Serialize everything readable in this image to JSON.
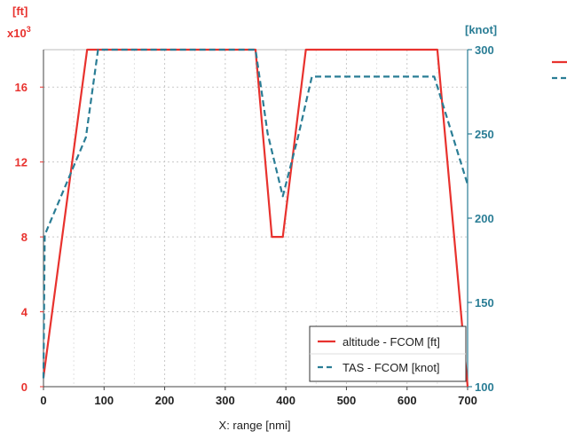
{
  "colors": {
    "altitude": "#e8322e",
    "tas": "#2a7d95",
    "grid": "#c8c8c8",
    "axis": "#444444"
  },
  "chart_data": {
    "type": "line",
    "xlabel": "X: range [nmi]",
    "xlim": [
      0,
      700
    ],
    "x_ticks": [
      0,
      100,
      200,
      300,
      400,
      500,
      600,
      700
    ],
    "left_axis": {
      "unit_label": "[ft]",
      "multiplier_base": "x10",
      "multiplier_exp": "3",
      "ylim": [
        0,
        18
      ],
      "ticks": [
        0,
        4,
        8,
        12,
        16
      ]
    },
    "right_axis": {
      "unit_label": "[knot]",
      "ylim": [
        100,
        300
      ],
      "ticks": [
        100,
        150,
        200,
        250,
        300
      ]
    },
    "grid": true,
    "legend_position": "bottom-right",
    "series": [
      {
        "name": "altitude - FCOM [ft]",
        "axis": "left",
        "style": "solid",
        "x": [
          0,
          72,
          350,
          377,
          395,
          433,
          650,
          700
        ],
        "y": [
          0.5,
          18,
          18,
          8,
          8,
          18,
          18,
          0
        ]
      },
      {
        "name": "TAS - FCOM [knot]",
        "axis": "right",
        "style": "dashed",
        "x": [
          0,
          2,
          70,
          90,
          350,
          370,
          395,
          420,
          443,
          645,
          700
        ],
        "y": [
          105,
          190,
          248,
          300,
          300,
          250,
          213,
          248,
          284,
          284,
          220
        ]
      }
    ]
  }
}
